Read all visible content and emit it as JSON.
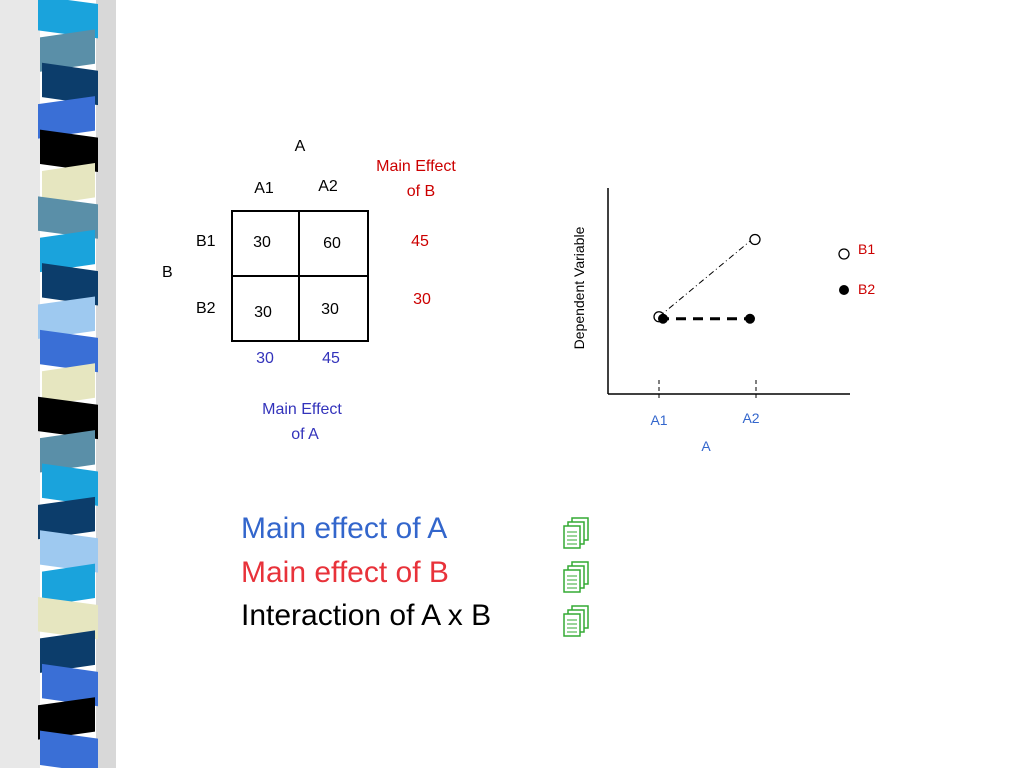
{
  "colors": {
    "main_a": "#3366cc",
    "main_b": "#e8323a",
    "interaction": "#000000",
    "table_a_effect": "#3333bb",
    "table_b_effect": "#cc0000",
    "bullet_icon": "#33aa33"
  },
  "decorative_bar": {
    "stripes": [
      "#1aa3dc",
      "#5a8fa8",
      "#0c3d6b",
      "#3a6fd6",
      "#000000",
      "#e6e6c0",
      "#5a8fa8",
      "#1aa3dc",
      "#0c3d6b",
      "#9ec9f0",
      "#3a6fd6",
      "#e6e6c0",
      "#000000",
      "#5a8fa8",
      "#1aa3dc",
      "#0c3d6b",
      "#9ec9f0",
      "#1aa3dc",
      "#e6e6c0",
      "#0c3d6b",
      "#3a6fd6",
      "#000000",
      "#3a6fd6"
    ]
  },
  "table": {
    "factor_a": "A",
    "factor_b": "B",
    "col_headers": [
      "A1",
      "A2"
    ],
    "row_headers": [
      "B1",
      "B2"
    ],
    "cells": [
      [
        "30",
        "60"
      ],
      [
        "30",
        "30"
      ]
    ],
    "main_effect_b_title_line1": "Main Effect",
    "main_effect_b_title_line2": "of B",
    "main_effect_b_values": [
      "45",
      "30"
    ],
    "main_effect_a_values": [
      "30",
      "45"
    ],
    "main_effect_a_title_line1": "Main Effect",
    "main_effect_a_title_line2": "of A"
  },
  "chart_data": {
    "type": "line",
    "xlabel": "A",
    "ylabel": "Dependent Variable",
    "categories": [
      "A1",
      "A2"
    ],
    "series": [
      {
        "name": "B1",
        "values": [
          30,
          60
        ],
        "marker": "open-circle",
        "line": "dash-dot thin"
      },
      {
        "name": "B2",
        "values": [
          30,
          30
        ],
        "marker": "filled-circle",
        "line": "dashed thick"
      }
    ],
    "ylim": [
      0,
      80
    ],
    "legend_position": "right",
    "grid": false
  },
  "bullets": [
    {
      "text": "Main effect of A",
      "icon": "document-stack-icon"
    },
    {
      "text": "Main effect of B",
      "icon": "document-stack-icon"
    },
    {
      "text": "Interaction of A x B",
      "icon": "document-stack-icon"
    }
  ]
}
